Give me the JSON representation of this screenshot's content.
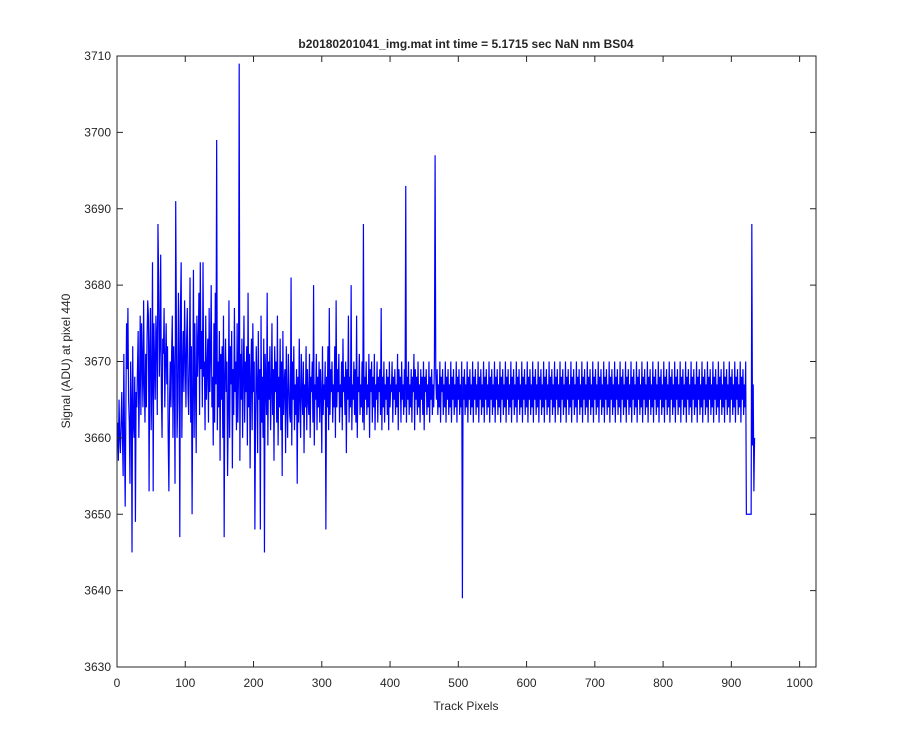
{
  "chart_data": {
    "type": "line",
    "title": "b20180201041_img.mat int time = 5.1715 sec  NaN nm BS04",
    "xlabel": "Track Pixels",
    "ylabel": "Signal (ADU) at pixel 440",
    "xlim": [
      0,
      1024
    ],
    "ylim": [
      3630,
      3710
    ],
    "xticks": [
      "0",
      "100",
      "200",
      "300",
      "400",
      "500",
      "600",
      "700",
      "800",
      "900",
      "1000"
    ],
    "yticks": [
      "3630",
      "3640",
      "3650",
      "3660",
      "3670",
      "3680",
      "3690",
      "3700",
      "3710"
    ],
    "grid": false,
    "legend": "none",
    "series": [
      {
        "color": "#0000ff",
        "x_start": 1,
        "x_step": 1,
        "y": [
          3662,
          3657,
          3665,
          3660,
          3658,
          3662,
          3666,
          3660,
          3655,
          3671,
          3660,
          3651,
          3664,
          3675,
          3669,
          3677,
          3665,
          3662,
          3654,
          3670,
          3665,
          3645,
          3672,
          3662,
          3660,
          3668,
          3649,
          3666,
          3664,
          3669,
          3674,
          3660,
          3667,
          3676,
          3663,
          3675,
          3670,
          3664,
          3678,
          3667,
          3662,
          3671,
          3664,
          3673,
          3678,
          3676,
          3653,
          3672,
          3677,
          3661,
          3667,
          3683,
          3653,
          3675,
          3670,
          3665,
          3676,
          3673,
          3663,
          3688,
          3681,
          3668,
          3672,
          3684,
          3666,
          3660,
          3673,
          3671,
          3677,
          3664,
          3670,
          3675,
          3667,
          3672,
          3660,
          3653,
          3665,
          3670,
          3664,
          3671,
          3676,
          3660,
          3672,
          3668,
          3654,
          3691,
          3675,
          3660,
          3665,
          3679,
          3671,
          3647,
          3677,
          3683,
          3660,
          3669,
          3674,
          3666,
          3678,
          3671,
          3664,
          3673,
          3677,
          3666,
          3663,
          3670,
          3681,
          3662,
          3672,
          3650,
          3666,
          3682,
          3660,
          3675,
          3667,
          3658,
          3676,
          3668,
          3672,
          3679,
          3663,
          3683,
          3669,
          3674,
          3664,
          3683,
          3668,
          3670,
          3661,
          3676,
          3665,
          3669,
          3673,
          3662,
          3677,
          3666,
          3671,
          3680,
          3664,
          3668,
          3659,
          3675,
          3662,
          3679,
          3667,
          3699,
          3661,
          3670,
          3664,
          3674,
          3657,
          3671,
          3665,
          3672,
          3660,
          3676,
          3647,
          3668,
          3673,
          3666,
          3670,
          3655,
          3663,
          3678,
          3660,
          3672,
          3667,
          3674,
          3656,
          3669,
          3663,
          3677,
          3666,
          3670,
          3661,
          3675,
          3662,
          3668,
          3709,
          3657,
          3671,
          3665,
          3673,
          3660,
          3668,
          3676,
          3662,
          3670,
          3666,
          3672,
          3659,
          3679,
          3664,
          3671,
          3656,
          3668,
          3673,
          3661,
          3675,
          3666,
          3670,
          3648,
          3663,
          3672,
          3667,
          3658,
          3674,
          3665,
          3669,
          3648,
          3676,
          3662,
          3668,
          3660,
          3673,
          3645,
          3671,
          3667,
          3663,
          3679,
          3659,
          3670,
          3665,
          3672,
          3661,
          3666,
          3675,
          3663,
          3669,
          3657,
          3672,
          3666,
          3670,
          3662,
          3676,
          3659,
          3668,
          3664,
          3673,
          3661,
          3670,
          3655,
          3674,
          3663,
          3667,
          3669,
          3658,
          3672,
          3665,
          3660,
          3671,
          3667,
          3663,
          3662,
          3681,
          3659,
          3670,
          3665,
          3672,
          3661,
          3667,
          3663,
          3669,
          3654,
          3668,
          3662,
          3673,
          3665,
          3660,
          3671,
          3666,
          3663,
          3670,
          3658,
          3667,
          3664,
          3672,
          3661,
          3669,
          3665,
          3663,
          3671,
          3660,
          3668,
          3666,
          3670,
          3662,
          3680,
          3659,
          3667,
          3665,
          3671,
          3661,
          3668,
          3664,
          3670,
          3662,
          3669,
          3666,
          3658,
          3672,
          3663,
          3667,
          3665,
          3670,
          3648,
          3668,
          3664,
          3672,
          3661,
          3677,
          3663,
          3669,
          3666,
          3670,
          3662,
          3667,
          3664,
          3672,
          3660,
          3678,
          3664,
          3669,
          3666,
          3671,
          3662,
          3667,
          3664,
          3670,
          3661,
          3673,
          3666,
          3668,
          3663,
          3670,
          3658,
          3669,
          3665,
          3676,
          3662,
          3668,
          3664,
          3680,
          3661,
          3667,
          3665,
          3670,
          3663,
          3669,
          3662,
          3676,
          3660,
          3668,
          3666,
          3671,
          3663,
          3667,
          3664,
          3670,
          3662,
          3688,
          3661,
          3668,
          3665,
          3670,
          3663,
          3667,
          3664,
          3671,
          3660,
          3669,
          3666,
          3670,
          3662,
          3668,
          3664,
          3671,
          3661,
          3667,
          3665,
          3670,
          3662,
          3668,
          3666,
          3669,
          3663,
          3677,
          3661,
          3668,
          3664,
          3670,
          3662,
          3667,
          3665,
          3669,
          3663,
          3668,
          3661,
          3670,
          3664,
          3667,
          3666,
          3670,
          3662,
          3668,
          3665,
          3669,
          3663,
          3667,
          3664,
          3671,
          3661,
          3669,
          3666,
          3668,
          3662,
          3670,
          3665,
          3667,
          3663,
          3669,
          3664,
          3693,
          3662,
          3668,
          3665,
          3670,
          3663,
          3667,
          3664,
          3669,
          3662,
          3668,
          3666,
          3671,
          3661,
          3669,
          3665,
          3668,
          3663,
          3670,
          3664,
          3667,
          3662,
          3669,
          3665,
          3668,
          3663,
          3670,
          3661,
          3668,
          3666,
          3669,
          3663,
          3667,
          3664,
          3670,
          3662,
          3668,
          3665,
          3669,
          3663,
          3667,
          3664,
          3670,
          3697,
          3668,
          3665,
          3669,
          3663,
          3667,
          3664,
          3670,
          3662,
          3668,
          3666,
          3669,
          3663,
          3667,
          3664,
          3670,
          3662,
          3668,
          3665,
          3669,
          3663,
          3667,
          3664,
          3670,
          3662,
          3668,
          3665,
          3669,
          3663,
          3667,
          3664,
          3670,
          3662,
          3668,
          3665,
          3669,
          3663,
          3667,
          3664,
          3670,
          3639,
          3668,
          3665,
          3669,
          3663,
          3667,
          3664,
          3670,
          3662,
          3668,
          3665,
          3669,
          3663,
          3667,
          3664,
          3670,
          3662,
          3668,
          3665,
          3669,
          3663,
          3667,
          3664,
          3670,
          3662,
          3668,
          3665,
          3669,
          3663,
          3667,
          3664,
          3670,
          3662,
          3668,
          3665,
          3669,
          3663,
          3667,
          3664,
          3670,
          3662,
          3668,
          3665,
          3669,
          3663,
          3667,
          3664,
          3670,
          3662,
          3668,
          3665,
          3669,
          3663,
          3667,
          3664,
          3670,
          3662,
          3668,
          3665,
          3669,
          3663,
          3667,
          3664,
          3670,
          3662,
          3668,
          3665,
          3669,
          3663,
          3667,
          3664,
          3670,
          3662,
          3668,
          3665,
          3669,
          3663,
          3667,
          3664,
          3670,
          3662,
          3668,
          3665,
          3669,
          3663,
          3667,
          3664,
          3670,
          3662,
          3668,
          3665,
          3669,
          3663,
          3667,
          3664,
          3670,
          3662,
          3668,
          3665,
          3669,
          3663,
          3667,
          3664,
          3670,
          3662,
          3668,
          3665,
          3669,
          3663,
          3667,
          3664,
          3670,
          3662,
          3668,
          3665,
          3669,
          3663,
          3667,
          3664,
          3670,
          3662,
          3668,
          3665,
          3669,
          3663,
          3667,
          3664,
          3670,
          3662,
          3668,
          3665,
          3669,
          3663,
          3667,
          3664,
          3670,
          3662,
          3668,
          3665,
          3669,
          3663,
          3667,
          3664,
          3670,
          3662,
          3668,
          3665,
          3669,
          3663,
          3667,
          3664,
          3670,
          3662,
          3668,
          3665,
          3669,
          3663,
          3667,
          3664,
          3670,
          3662,
          3668,
          3665,
          3669,
          3663,
          3667,
          3664,
          3670,
          3662,
          3668,
          3665,
          3669,
          3663,
          3667,
          3664,
          3670,
          3662,
          3668,
          3665,
          3669,
          3663,
          3667,
          3664,
          3670,
          3662,
          3668,
          3665,
          3669,
          3663,
          3667,
          3664,
          3670,
          3662,
          3668,
          3665,
          3669,
          3663,
          3667,
          3664,
          3670,
          3662,
          3668,
          3665,
          3669,
          3663,
          3667,
          3664,
          3670,
          3662,
          3668,
          3665,
          3669,
          3663,
          3667,
          3664,
          3670,
          3662,
          3668,
          3665,
          3669,
          3663,
          3667,
          3664,
          3670,
          3662,
          3668,
          3665,
          3669,
          3663,
          3667,
          3664,
          3670,
          3662,
          3668,
          3665,
          3669,
          3663,
          3667,
          3664,
          3670,
          3662,
          3668,
          3665,
          3669,
          3663,
          3667,
          3664,
          3670,
          3662,
          3668,
          3665,
          3669,
          3663,
          3667,
          3664,
          3670,
          3662,
          3668,
          3665,
          3669,
          3663,
          3667,
          3664,
          3670,
          3662,
          3668,
          3665,
          3669,
          3663,
          3667,
          3664,
          3670,
          3662,
          3668,
          3665,
          3669,
          3663,
          3667,
          3664,
          3670,
          3662,
          3668,
          3665,
          3669,
          3663,
          3667,
          3664,
          3670,
          3662,
          3668,
          3665,
          3669,
          3663,
          3667,
          3664,
          3670,
          3662,
          3668,
          3665,
          3669,
          3663,
          3667,
          3664,
          3670,
          3662,
          3668,
          3665,
          3669,
          3663,
          3667,
          3664,
          3670,
          3662,
          3668,
          3665,
          3669,
          3663,
          3667,
          3664,
          3670,
          3662,
          3668,
          3665,
          3669,
          3663,
          3667,
          3664,
          3670,
          3662,
          3668,
          3665,
          3669,
          3663,
          3667,
          3664,
          3670,
          3662,
          3668,
          3665,
          3669,
          3663,
          3667,
          3664,
          3670,
          3662,
          3668,
          3665,
          3669,
          3663,
          3667,
          3664,
          3670,
          3662,
          3668,
          3665,
          3669,
          3663,
          3667,
          3664,
          3670,
          3662,
          3668,
          3665,
          3669,
          3663,
          3667,
          3664,
          3670,
          3662,
          3668,
          3665,
          3669,
          3663,
          3667,
          3664,
          3670,
          3662,
          3668,
          3665,
          3669,
          3663,
          3667,
          3664,
          3670,
          3662,
          3668,
          3665,
          3669,
          3663,
          3667,
          3664,
          3670,
          3662,
          3668,
          3665,
          3669,
          3663,
          3667,
          3664,
          3670,
          3662,
          3668,
          3665,
          3669,
          3663,
          3667,
          3664,
          3670,
          3662,
          3668,
          3665,
          3669,
          3663,
          3667,
          3664,
          3670,
          3650,
          3650,
          3650,
          3650,
          3650,
          3650,
          3650,
          3650,
          3688,
          3659,
          3667,
          3653,
          3660
        ]
      }
    ]
  }
}
